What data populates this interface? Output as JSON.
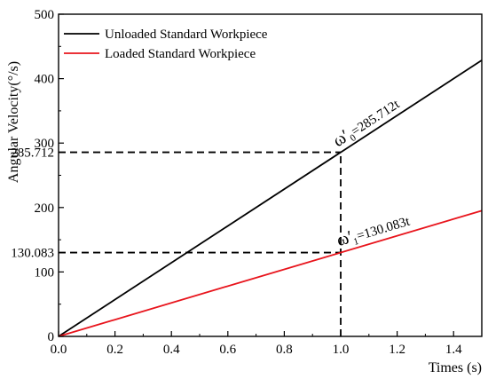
{
  "chart_data": {
    "type": "line",
    "xlabel": "Times (s)",
    "ylabel": "Angular Velocity(°/s)",
    "xlim": [
      0.0,
      1.5
    ],
    "ylim": [
      0,
      500
    ],
    "x_ticks": [
      0.0,
      0.2,
      0.4,
      0.6,
      0.8,
      1.0,
      1.2,
      1.4
    ],
    "x_tick_labels": [
      "0.0",
      "0.2",
      "0.4",
      "0.6",
      "0.8",
      "1.0",
      "1.2",
      "1.4"
    ],
    "y_ticks": [
      0,
      100,
      200,
      300,
      400,
      500
    ],
    "y_tick_labels": [
      "0",
      "100",
      "200",
      "300",
      "400",
      "500"
    ],
    "extra_y_ticks": [
      285.712,
      130.083
    ],
    "extra_y_tick_labels": [
      "285.712",
      "130.083"
    ],
    "grid": false,
    "legend_position": "top-left",
    "series": [
      {
        "name": "Unloaded  Standard Workpiece",
        "color": "#000000",
        "x": [
          0.0,
          1.5
        ],
        "y": [
          0,
          428.568
        ]
      },
      {
        "name": "Loaded  Standard Workpiece",
        "color": "#e8141c",
        "x": [
          0.0,
          1.5
        ],
        "y": [
          0,
          195.1245
        ]
      }
    ],
    "reference_lines": {
      "x_value": 1.0,
      "y_values": [
        285.712,
        130.083
      ],
      "style": "dashed"
    },
    "annotations": [
      {
        "omega": "ω",
        "prime": "′",
        "sub": "0",
        "text": "=285.712t",
        "series_index": 0,
        "x": 1.1
      },
      {
        "omega": "ω",
        "prime": "′",
        "sub": "1",
        "text": "=130.083t",
        "series_index": 1,
        "x": 1.12
      }
    ]
  }
}
